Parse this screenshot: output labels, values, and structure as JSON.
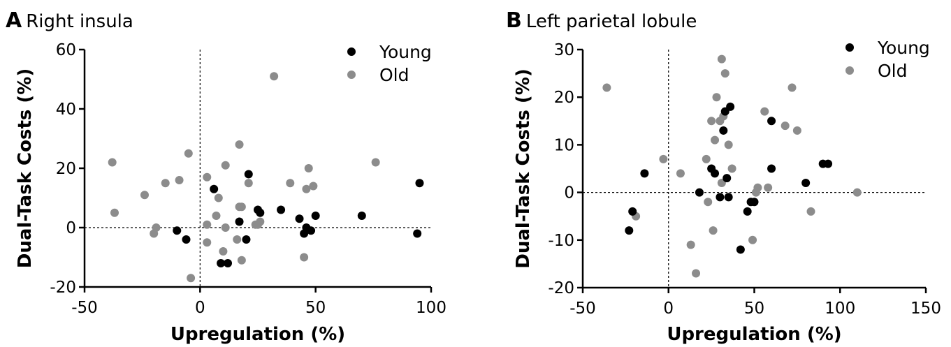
{
  "panels": [
    {
      "letter": "A",
      "title": "Right insula"
    },
    {
      "letter": "B",
      "title": "Left parietal lobule"
    }
  ],
  "colors": {
    "young": "#000000",
    "old": "#8c8c8c"
  },
  "chart_data": [
    {
      "type": "scatter",
      "title": "Right insula",
      "xlabel": "Upregulation (%)",
      "ylabel": "Dual-Task Costs (%)",
      "xlim": [
        -50,
        100
      ],
      "ylim": [
        -20,
        60
      ],
      "xticks": [
        -50,
        0,
        50,
        100
      ],
      "yticks": [
        -20,
        0,
        20,
        40,
        60
      ],
      "reference_lines": {
        "x": 0,
        "y": 0
      },
      "legend_position": "top-right",
      "series": [
        {
          "name": "Young",
          "color": "#000000",
          "points": [
            [
              -10,
              -1
            ],
            [
              -6,
              -4
            ],
            [
              6,
              13
            ],
            [
              9,
              -12
            ],
            [
              12,
              -12
            ],
            [
              17,
              2
            ],
            [
              20,
              -4
            ],
            [
              21,
              18
            ],
            [
              25,
              6
            ],
            [
              26,
              5
            ],
            [
              35,
              6
            ],
            [
              43,
              3
            ],
            [
              45,
              -2
            ],
            [
              46,
              0
            ],
            [
              48,
              -1
            ],
            [
              50,
              4
            ],
            [
              70,
              4
            ],
            [
              94,
              -2
            ],
            [
              95,
              15
            ]
          ]
        },
        {
          "name": "Old",
          "color": "#8c8c8c",
          "points": [
            [
              -38,
              22
            ],
            [
              -37,
              5
            ],
            [
              -24,
              11
            ],
            [
              -20,
              -2
            ],
            [
              -19,
              0
            ],
            [
              -15,
              15
            ],
            [
              -9,
              16
            ],
            [
              -5,
              25
            ],
            [
              -4,
              -17
            ],
            [
              3,
              1
            ],
            [
              3,
              -5
            ],
            [
              3,
              17
            ],
            [
              7,
              4
            ],
            [
              8,
              10
            ],
            [
              10,
              -8
            ],
            [
              11,
              0
            ],
            [
              11,
              21
            ],
            [
              16,
              -4
            ],
            [
              17,
              7
            ],
            [
              17,
              28
            ],
            [
              18,
              7
            ],
            [
              18,
              -11
            ],
            [
              21,
              15
            ],
            [
              24,
              1
            ],
            [
              25,
              1
            ],
            [
              26,
              2
            ],
            [
              32,
              51
            ],
            [
              39,
              15
            ],
            [
              45,
              -10
            ],
            [
              46,
              13
            ],
            [
              47,
              20
            ],
            [
              49,
              14
            ],
            [
              76,
              22
            ]
          ]
        }
      ]
    },
    {
      "type": "scatter",
      "title": "Left parietal lobule",
      "xlabel": "Upregulation (%)",
      "ylabel": "Dual-Task Costs (%)",
      "xlim": [
        -50,
        150
      ],
      "ylim": [
        -20,
        30
      ],
      "xticks": [
        -50,
        0,
        50,
        100,
        150
      ],
      "yticks": [
        -20,
        -10,
        0,
        10,
        20,
        30
      ],
      "reference_lines": {
        "x": 0,
        "y": 0
      },
      "legend_position": "top-right",
      "series": [
        {
          "name": "Young",
          "color": "#000000",
          "points": [
            [
              -23,
              -8
            ],
            [
              -21,
              -4
            ],
            [
              -14,
              4
            ],
            [
              18,
              0
            ],
            [
              25,
              5
            ],
            [
              27,
              4
            ],
            [
              30,
              -1
            ],
            [
              32,
              13
            ],
            [
              33,
              17
            ],
            [
              34,
              3
            ],
            [
              35,
              -1
            ],
            [
              36,
              18
            ],
            [
              42,
              -12
            ],
            [
              46,
              -4
            ],
            [
              48,
              -2
            ],
            [
              50,
              -2
            ],
            [
              60,
              15
            ],
            [
              60,
              5
            ],
            [
              80,
              2
            ],
            [
              90,
              6
            ],
            [
              93,
              6
            ]
          ]
        },
        {
          "name": "Old",
          "color": "#8c8c8c",
          "points": [
            [
              -36,
              22
            ],
            [
              -19,
              -5
            ],
            [
              -3,
              7
            ],
            [
              7,
              4
            ],
            [
              13,
              -11
            ],
            [
              16,
              -17
            ],
            [
              22,
              7
            ],
            [
              23,
              -2
            ],
            [
              25,
              15
            ],
            [
              26,
              -8
            ],
            [
              27,
              11
            ],
            [
              28,
              20
            ],
            [
              30,
              15
            ],
            [
              31,
              2
            ],
            [
              31,
              28
            ],
            [
              32,
              16
            ],
            [
              33,
              25
            ],
            [
              35,
              10
            ],
            [
              37,
              5
            ],
            [
              49,
              -10
            ],
            [
              51,
              0
            ],
            [
              52,
              1
            ],
            [
              56,
              17
            ],
            [
              58,
              1
            ],
            [
              68,
              14
            ],
            [
              72,
              22
            ],
            [
              75,
              13
            ],
            [
              83,
              -4
            ],
            [
              110,
              0
            ]
          ]
        }
      ]
    }
  ]
}
